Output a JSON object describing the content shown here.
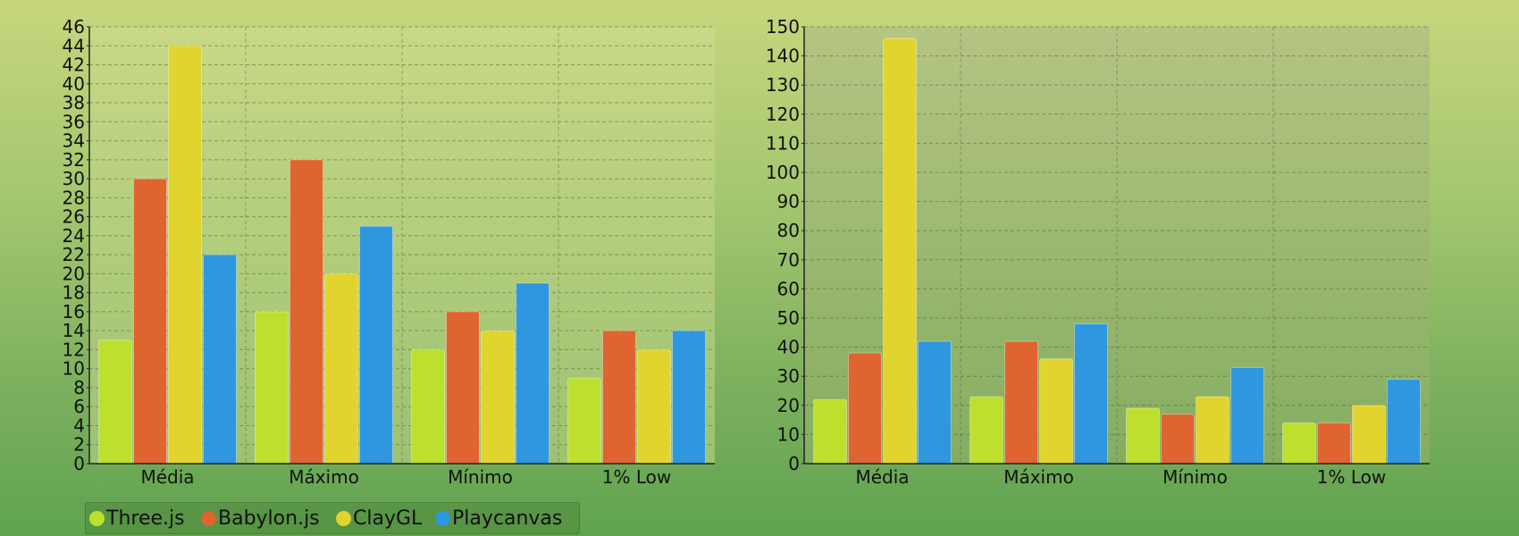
{
  "chart_data": [
    {
      "type": "bar",
      "categories": [
        "Média",
        "Máximo",
        "Mínimo",
        "1% Low"
      ],
      "ylim": [
        0,
        46
      ],
      "ytick_step": 2,
      "grid": true,
      "legend_position": "bottom-left",
      "series": [
        {
          "name": "Three.js",
          "color": "#bde02e",
          "values": [
            13,
            16,
            12,
            9
          ]
        },
        {
          "name": "Babylon.js",
          "color": "#e06430",
          "values": [
            30,
            32,
            16,
            14
          ]
        },
        {
          "name": "ClayGL",
          "color": "#e2d42e",
          "values": [
            44,
            20,
            14,
            12
          ]
        },
        {
          "name": "Playcanvas",
          "color": "#2e97e0",
          "values": [
            22,
            25,
            19,
            14
          ]
        }
      ]
    },
    {
      "type": "bar",
      "categories": [
        "Média",
        "Máximo",
        "Mínimo",
        "1% Low"
      ],
      "ylim": [
        0,
        150
      ],
      "ytick_step": 10,
      "grid": true,
      "series": [
        {
          "name": "Three.js",
          "color": "#bde02e",
          "values": [
            22,
            23,
            19,
            14
          ]
        },
        {
          "name": "Babylon.js",
          "color": "#e06430",
          "values": [
            38,
            42,
            17,
            14
          ]
        },
        {
          "name": "ClayGL",
          "color": "#e2d42e",
          "values": [
            146,
            36,
            23,
            20
          ]
        },
        {
          "name": "Playcanvas",
          "color": "#2e97e0",
          "values": [
            42,
            48,
            33,
            29
          ]
        }
      ]
    }
  ],
  "legend": {
    "items": [
      {
        "label": "Three.js",
        "color": "#bde02e"
      },
      {
        "label": "Babylon.js",
        "color": "#e06430"
      },
      {
        "label": "ClayGL",
        "color": "#e2d42e"
      },
      {
        "label": "Playcanvas",
        "color": "#2e97e0"
      }
    ]
  }
}
